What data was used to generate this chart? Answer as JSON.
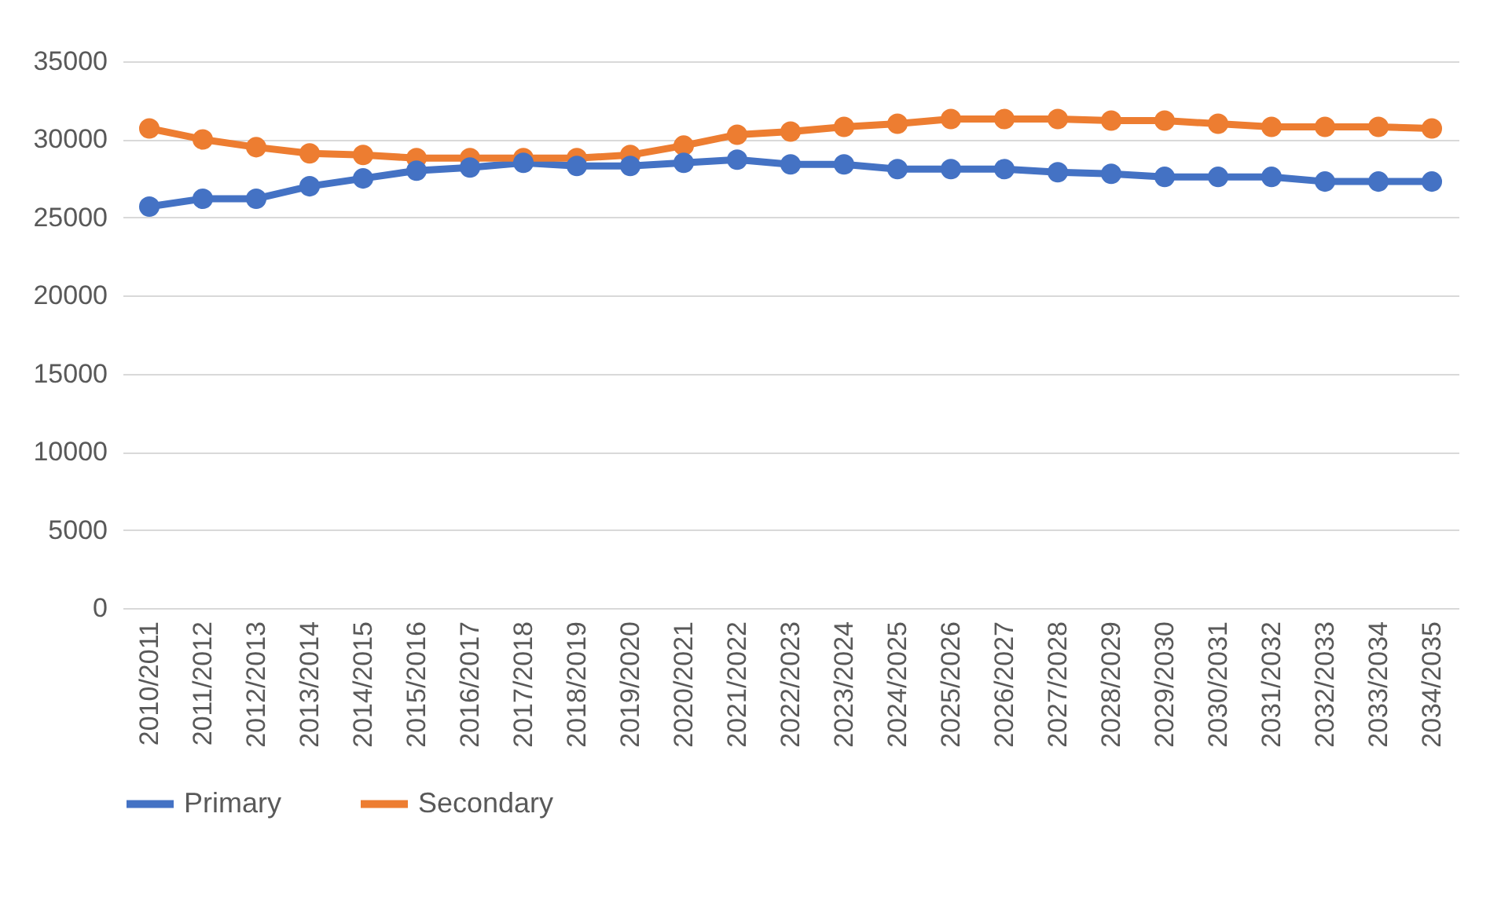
{
  "chart_data": {
    "type": "line",
    "categories": [
      "2010/2011",
      "2011/2012",
      "2012/2013",
      "2013/2014",
      "2014/2015",
      "2015/2016",
      "2016/2017",
      "2017/2018",
      "2018/2019",
      "2019/2020",
      "2020/2021",
      "2021/2022",
      "2022/2023",
      "2023/2024",
      "2024/2025",
      "2025/2026",
      "2026/2027",
      "2027/2028",
      "2028/2029",
      "2029/2030",
      "2030/2031",
      "2031/2032",
      "2032/2033",
      "2033/2034",
      "2034/2035"
    ],
    "series": [
      {
        "name": "Primary",
        "color": "#4472c4",
        "values": [
          25700,
          26200,
          26200,
          27000,
          27500,
          28000,
          28200,
          28500,
          28300,
          28300,
          28500,
          28700,
          28400,
          28400,
          28100,
          28100,
          28100,
          27900,
          27800,
          27600,
          27600,
          27600,
          27300,
          27300,
          27300
        ]
      },
      {
        "name": "Secondary",
        "color": "#ed7d31",
        "values": [
          30700,
          30000,
          29500,
          29100,
          29000,
          28800,
          28800,
          28800,
          28800,
          29000,
          29600,
          30300,
          30500,
          30800,
          31000,
          31300,
          31300,
          31300,
          31200,
          31200,
          31000,
          30800,
          30800,
          30800,
          30700
        ]
      }
    ],
    "ylim": [
      0,
      35000
    ],
    "yticks": [
      0,
      5000,
      10000,
      15000,
      20000,
      25000,
      30000,
      35000
    ],
    "grid": "y",
    "legend": "bottom",
    "marker": "circle",
    "line_style": "solid"
  }
}
